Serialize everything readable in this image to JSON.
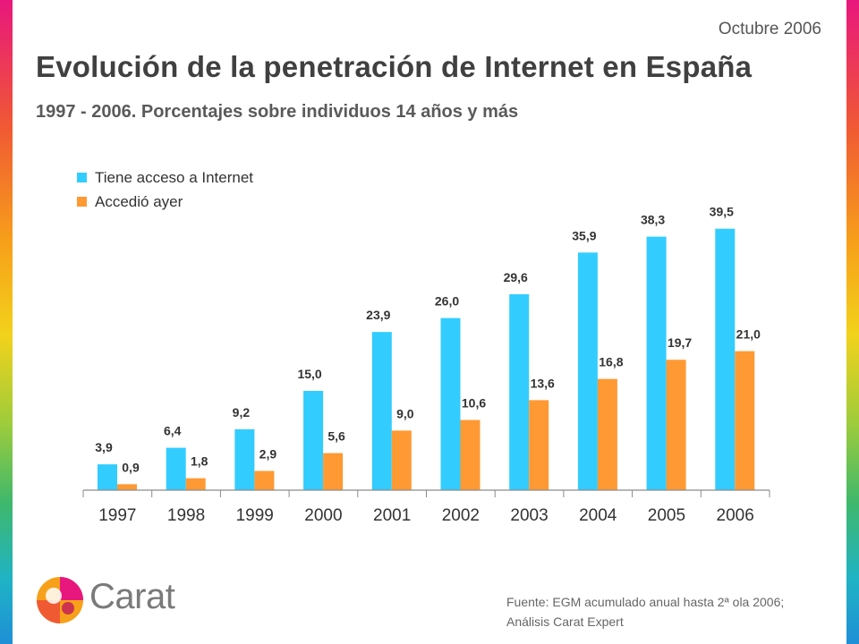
{
  "header": {
    "date": "Octubre 2006",
    "title": "Evolución de la penetración de Internet en España",
    "subtitle": "1997 - 2006. Porcentajes sobre individuos 14 años y más"
  },
  "footer": {
    "source_line1": "Fuente: EGM acumulado anual hasta 2ª ola 2006;",
    "source_line2": "Análisis Carat Expert",
    "logo_text": "Carat"
  },
  "colors": {
    "series1": "#33ccff",
    "series2": "#ff9933",
    "axis": "#8c8c8c",
    "text": "#333333"
  },
  "chart_data": {
    "type": "bar",
    "categories": [
      "1997",
      "1998",
      "1999",
      "2000",
      "2001",
      "2002",
      "2003",
      "2004",
      "2005",
      "2006"
    ],
    "series": [
      {
        "name": "Tiene acceso a Internet",
        "values": [
          3.9,
          6.4,
          9.2,
          15.0,
          23.9,
          26.0,
          29.6,
          35.9,
          38.3,
          39.5
        ],
        "labels": [
          "3,9",
          "6,4",
          "9,2",
          "15,0",
          "23,9",
          "26,0",
          "29,6",
          "35,9",
          "38,3",
          "39,5"
        ]
      },
      {
        "name": "Accedió ayer",
        "values": [
          0.9,
          1.8,
          2.9,
          5.6,
          9.0,
          10.6,
          13.6,
          16.8,
          19.7,
          21.0
        ],
        "labels": [
          "0,9",
          "1,8",
          "2,9",
          "5,6",
          "9,0",
          "10,6",
          "13,6",
          "16,8",
          "19,7",
          "21,0"
        ]
      }
    ],
    "legend": "top-left",
    "grid": false
  }
}
